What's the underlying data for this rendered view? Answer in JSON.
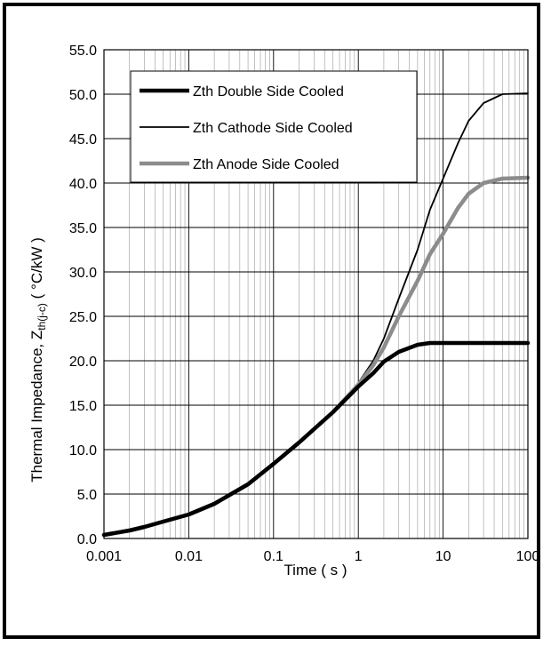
{
  "chart_data": {
    "type": "line",
    "xscale": "log",
    "xlim": [
      0.001,
      100
    ],
    "ylim": [
      0,
      55
    ],
    "xlabel": "Time ( s )",
    "ylabel_main": "Thermal Impedance, Z",
    "ylabel_sub": "th(j-c)",
    "ylabel_unit": " ( °C/kW )",
    "x_ticks": [
      "0.001",
      "0.01",
      "0.1",
      "1",
      "10",
      "100"
    ],
    "y_ticks": [
      "0.0",
      "5.0",
      "10.0",
      "15.0",
      "20.0",
      "25.0",
      "30.0",
      "35.0",
      "40.0",
      "45.0",
      "50.0",
      "55.0"
    ],
    "grid": true,
    "legend_position": "top-left",
    "series": [
      {
        "name": "Zth Double Side Cooled",
        "color": "#000000",
        "style": "thick",
        "x": [
          0.001,
          0.002,
          0.003,
          0.005,
          0.01,
          0.02,
          0.05,
          0.1,
          0.2,
          0.5,
          1,
          1.5,
          2,
          3,
          5,
          7,
          10,
          20,
          50,
          100
        ],
        "y": [
          0.4,
          0.9,
          1.3,
          1.9,
          2.7,
          3.9,
          6.1,
          8.4,
          10.8,
          14.2,
          17.1,
          18.6,
          19.9,
          21.0,
          21.8,
          22.0,
          22.0,
          22.0,
          22.0,
          22.0
        ]
      },
      {
        "name": "Zth Cathode Side Cooled",
        "color": "#000000",
        "style": "thin",
        "x": [
          0.001,
          0.002,
          0.003,
          0.005,
          0.01,
          0.02,
          0.05,
          0.1,
          0.2,
          0.5,
          1,
          1.5,
          2,
          3,
          5,
          7,
          10,
          15,
          20,
          30,
          50,
          100
        ],
        "y": [
          0.4,
          0.9,
          1.3,
          1.9,
          2.7,
          3.9,
          6.1,
          8.4,
          10.8,
          14.2,
          17.5,
          20.0,
          22.5,
          27.0,
          32.5,
          37.0,
          40.5,
          44.5,
          47.0,
          49.0,
          50.0,
          50.1
        ]
      },
      {
        "name": "Zth Anode Side Cooled",
        "color": "#8c8c8c",
        "style": "thick",
        "x": [
          0.001,
          0.002,
          0.003,
          0.005,
          0.01,
          0.02,
          0.05,
          0.1,
          0.2,
          0.5,
          1,
          1.5,
          2,
          3,
          5,
          7,
          10,
          15,
          20,
          30,
          50,
          100
        ],
        "y": [
          0.4,
          0.9,
          1.3,
          1.9,
          2.7,
          3.9,
          6.1,
          8.4,
          10.8,
          14.2,
          17.3,
          19.5,
          21.5,
          25.0,
          29.0,
          32.0,
          34.3,
          37.2,
          38.8,
          40.0,
          40.5,
          40.6
        ]
      }
    ]
  }
}
